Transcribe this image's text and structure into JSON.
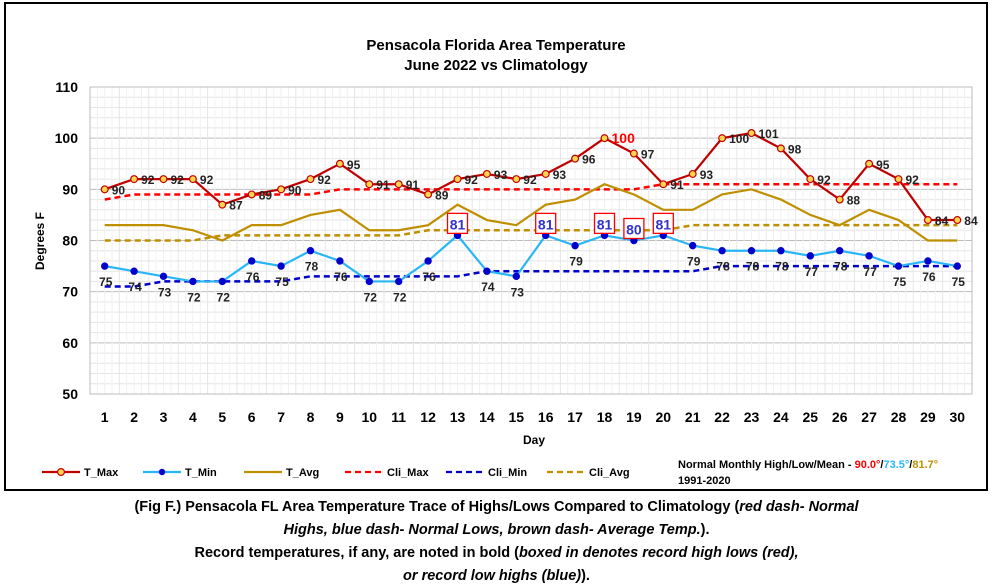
{
  "chart_data": {
    "type": "line",
    "title": "Pensacola Florida Area Temperature",
    "subtitle": "June 2022 vs Climatology",
    "xlabel": "Day",
    "ylabel": "Degrees F",
    "ylim": [
      50,
      110
    ],
    "yticks": [
      50,
      60,
      70,
      80,
      90,
      100,
      110
    ],
    "x": [
      1,
      2,
      3,
      4,
      5,
      6,
      7,
      8,
      9,
      10,
      11,
      12,
      13,
      14,
      15,
      16,
      17,
      18,
      19,
      20,
      21,
      22,
      23,
      24,
      25,
      26,
      27,
      28,
      29,
      30
    ],
    "grid": true,
    "legend": "bottom",
    "series": [
      {
        "name": "T_Max",
        "color": "#c00000",
        "marker": "#ffd54f",
        "style": "solid",
        "values": [
          90,
          92,
          92,
          92,
          87,
          89,
          90,
          92,
          95,
          91,
          91,
          89,
          92,
          93,
          92,
          93,
          96,
          100,
          97,
          91,
          93,
          100,
          101,
          98,
          92,
          88,
          95,
          92,
          84,
          84
        ]
      },
      {
        "name": "T_Min",
        "color": "#29b6f6",
        "marker": "#0000cc",
        "style": "solid",
        "values": [
          75,
          74,
          73,
          72,
          72,
          76,
          75,
          78,
          76,
          72,
          72,
          76,
          81,
          74,
          73,
          81,
          79,
          81,
          80,
          81,
          79,
          78,
          78,
          78,
          77,
          78,
          77,
          75,
          76,
          75
        ]
      },
      {
        "name": "T_Avg",
        "color": "#bf8f00",
        "style": "solid",
        "values": [
          83,
          83,
          83,
          82,
          80,
          83,
          83,
          85,
          86,
          82,
          82,
          83,
          87,
          84,
          83,
          87,
          88,
          91,
          89,
          86,
          86,
          89,
          90,
          88,
          85,
          83,
          86,
          84,
          80,
          80
        ]
      },
      {
        "name": "Cli_Max",
        "color": "#ff0000",
        "style": "dash",
        "values": [
          88,
          89,
          89,
          89,
          89,
          89,
          89,
          89,
          90,
          90,
          90,
          90,
          90,
          90,
          90,
          90,
          90,
          90,
          90,
          91,
          91,
          91,
          91,
          91,
          91,
          91,
          91,
          91,
          91,
          91
        ]
      },
      {
        "name": "Cli_Min",
        "color": "#0000cc",
        "style": "dash",
        "values": [
          71,
          71,
          72,
          72,
          72,
          72,
          72,
          73,
          73,
          73,
          73,
          73,
          73,
          74,
          74,
          74,
          74,
          74,
          74,
          74,
          74,
          75,
          75,
          75,
          75,
          75,
          75,
          75,
          75,
          75
        ]
      },
      {
        "name": "Cli_Avg",
        "color": "#bf8f00",
        "style": "dash",
        "values": [
          80,
          80,
          80,
          80,
          81,
          81,
          81,
          81,
          81,
          81,
          81,
          82,
          82,
          82,
          82,
          82,
          82,
          82,
          82,
          82,
          83,
          83,
          83,
          83,
          83,
          83,
          83,
          83,
          83,
          83
        ]
      }
    ],
    "record_high_days": [
      18
    ],
    "boxed_min_days": [
      13,
      16,
      18,
      19,
      20
    ],
    "normals": {
      "label": "Normal Monthly High/Low/Mean - ",
      "high": "90.0°",
      "low": "73.5°",
      "mean": "81.7°",
      "period": "1991-2020",
      "high_color": "#ff0000",
      "low_color": "#29b6f6",
      "mean_color": "#bf8f00"
    }
  },
  "caption": {
    "line1_a": "(Fig F.) Pensacola FL Area Temperature Trace of Highs/Lows Compared to Climatology (",
    "line1_i": "red dash- Normal",
    "line2_i": "Highs, blue dash- Normal Lows, brown dash- Average Temp.",
    "line2_b": ").",
    "line3_a": "Record temperatures, if any, are noted in bold (",
    "line3_i": "boxed in denotes record high lows (red),",
    "line4_i": "or record low highs (blue)",
    "line4_b": ")."
  }
}
